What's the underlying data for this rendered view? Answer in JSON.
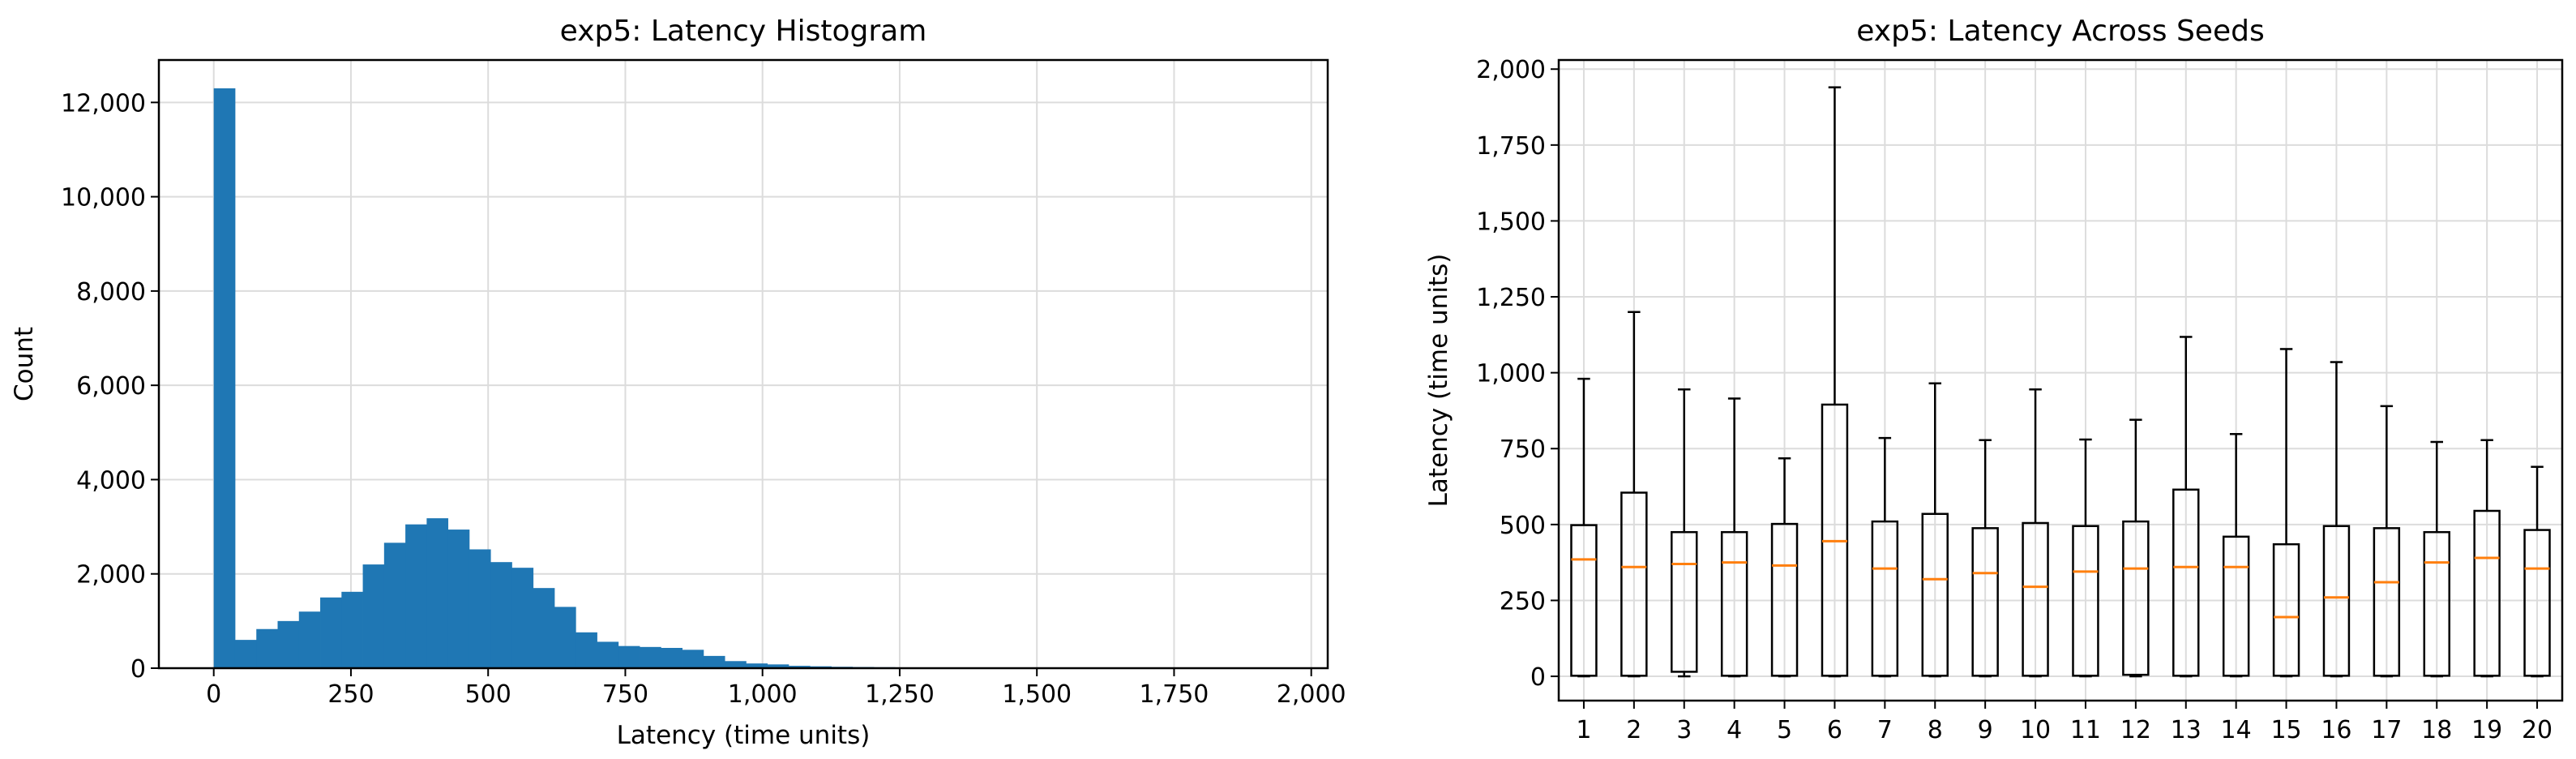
{
  "chart_data": [
    {
      "type": "bar",
      "subtype": "histogram",
      "title": "exp5: Latency Histogram",
      "xlabel": "Latency (time units)",
      "ylabel": "Count",
      "xlim": [
        -100,
        2030
      ],
      "ylim": [
        0,
        12900
      ],
      "xticks": [
        0,
        250,
        500,
        750,
        1000,
        1250,
        1500,
        1750,
        2000
      ],
      "xtick_labels": [
        "0",
        "250",
        "500",
        "750",
        "1,000",
        "1,250",
        "1,500",
        "1,750",
        "2,000"
      ],
      "yticks": [
        0,
        2000,
        4000,
        6000,
        8000,
        10000,
        12000
      ],
      "ytick_labels": [
        "0",
        "2,000",
        "4,000",
        "6,000",
        "8,000",
        "10,000",
        "12,000"
      ],
      "bar_color": "#1f77b4",
      "grid": true,
      "bin_start": 0,
      "bin_width": 38.8,
      "values": [
        12300,
        600,
        830,
        1000,
        1200,
        1500,
        1620,
        2200,
        2660,
        3050,
        3180,
        2940,
        2520,
        2250,
        2130,
        1700,
        1300,
        760,
        560,
        470,
        450,
        430,
        390,
        260,
        150,
        100,
        80,
        50,
        40,
        30,
        25,
        20,
        15,
        12,
        10,
        8,
        6,
        5,
        4,
        3,
        3,
        2,
        2,
        2,
        1,
        1,
        1,
        1,
        1,
        1,
        1
      ]
    },
    {
      "type": "box",
      "title": "exp5: Latency Across Seeds",
      "xlabel": "",
      "ylabel": "Latency (time units)",
      "ylim": [
        -80,
        2030
      ],
      "yticks": [
        0,
        250,
        500,
        750,
        1000,
        1250,
        1500,
        1750,
        2000
      ],
      "ytick_labels": [
        "0",
        "250",
        "500",
        "750",
        "1,000",
        "1,250",
        "1,500",
        "1,750",
        "2,000"
      ],
      "categories": [
        "1",
        "2",
        "3",
        "4",
        "5",
        "6",
        "7",
        "8",
        "9",
        "10",
        "11",
        "12",
        "13",
        "14",
        "15",
        "16",
        "17",
        "18",
        "19",
        "20"
      ],
      "median_color": "#ff7f0e",
      "grid": true,
      "boxes": [
        {
          "whislo": 0,
          "q1": 2,
          "med": 385,
          "q3": 498,
          "whishi": 980
        },
        {
          "whislo": 0,
          "q1": 2,
          "med": 360,
          "q3": 605,
          "whishi": 1200
        },
        {
          "whislo": 0,
          "q1": 15,
          "med": 370,
          "q3": 475,
          "whishi": 945
        },
        {
          "whislo": 0,
          "q1": 2,
          "med": 375,
          "q3": 475,
          "whishi": 915
        },
        {
          "whislo": 0,
          "q1": 2,
          "med": 365,
          "q3": 502,
          "whishi": 718
        },
        {
          "whislo": 0,
          "q1": 2,
          "med": 445,
          "q3": 895,
          "whishi": 1940
        },
        {
          "whislo": 0,
          "q1": 2,
          "med": 355,
          "q3": 510,
          "whishi": 785
        },
        {
          "whislo": 0,
          "q1": 2,
          "med": 320,
          "q3": 535,
          "whishi": 965
        },
        {
          "whislo": 0,
          "q1": 2,
          "med": 340,
          "q3": 488,
          "whishi": 778
        },
        {
          "whislo": 0,
          "q1": 2,
          "med": 295,
          "q3": 505,
          "whishi": 945
        },
        {
          "whislo": 0,
          "q1": 2,
          "med": 345,
          "q3": 495,
          "whishi": 780
        },
        {
          "whislo": 0,
          "q1": 5,
          "med": 355,
          "q3": 510,
          "whishi": 845
        },
        {
          "whislo": 0,
          "q1": 2,
          "med": 360,
          "q3": 615,
          "whishi": 1118
        },
        {
          "whislo": 0,
          "q1": 2,
          "med": 360,
          "q3": 460,
          "whishi": 798
        },
        {
          "whislo": 0,
          "q1": 2,
          "med": 195,
          "q3": 435,
          "whishi": 1078
        },
        {
          "whislo": 0,
          "q1": 2,
          "med": 260,
          "q3": 495,
          "whishi": 1035
        },
        {
          "whislo": 0,
          "q1": 2,
          "med": 310,
          "q3": 488,
          "whishi": 890
        },
        {
          "whislo": 0,
          "q1": 2,
          "med": 375,
          "q3": 475,
          "whishi": 772
        },
        {
          "whislo": 0,
          "q1": 2,
          "med": 390,
          "q3": 545,
          "whishi": 778
        },
        {
          "whislo": 0,
          "q1": 2,
          "med": 355,
          "q3": 482,
          "whishi": 690
        }
      ]
    }
  ]
}
